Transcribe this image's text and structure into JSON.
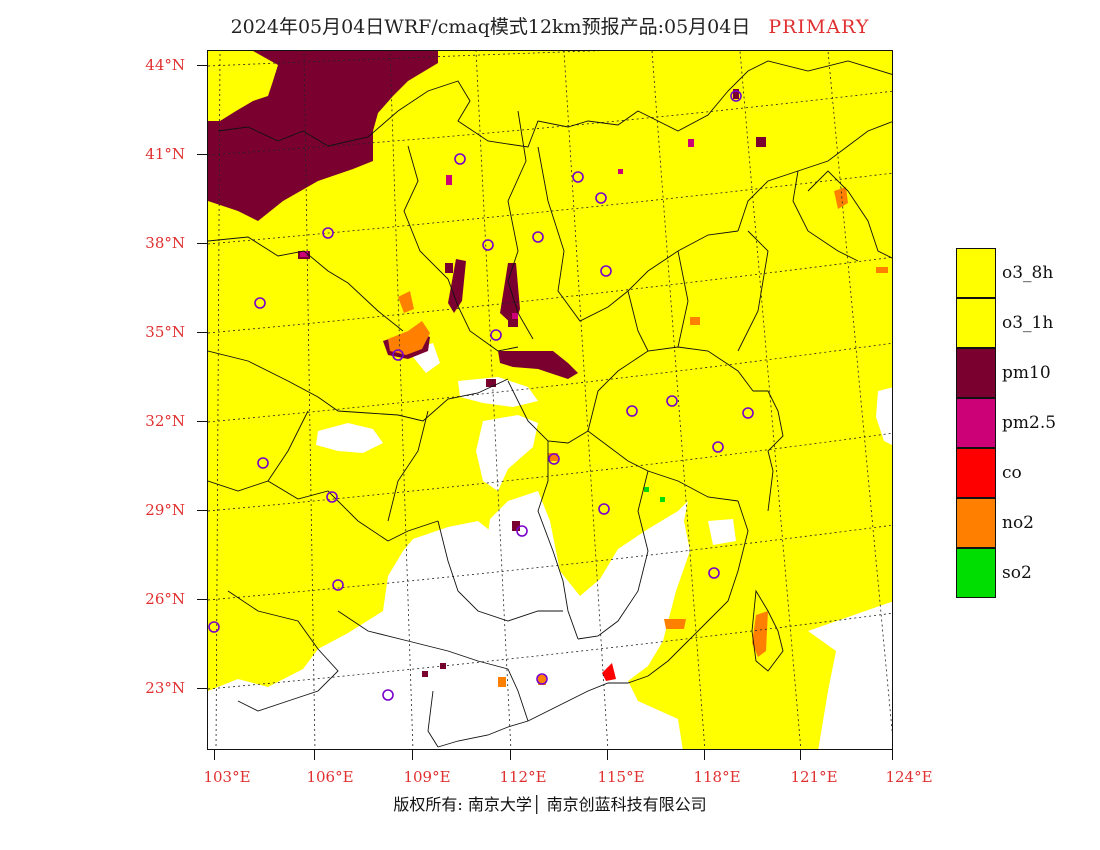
{
  "title": {
    "main": "2024年05月04日WRF/cmaq模式12km预报产品:05月04日",
    "tag": "PRIMARY"
  },
  "lat_labels": [
    "44°N",
    "41°N",
    "38°N",
    "35°N",
    "32°N",
    "29°N",
    "26°N",
    "23°N"
  ],
  "lon_labels": [
    "103°E",
    "106°E",
    "109°E",
    "112°E",
    "115°E",
    "118°E",
    "121°E",
    "124°E"
  ],
  "legend": [
    {
      "label": "o3_8h",
      "color": "#ffff00"
    },
    {
      "label": "o3_1h",
      "color": "#ffff00"
    },
    {
      "label": "pm10",
      "color": "#7a0030"
    },
    {
      "label": "pm2.5",
      "color": "#cc0077"
    },
    {
      "label": "co",
      "color": "#ff0000"
    },
    {
      "label": "no2",
      "color": "#ff8000"
    },
    {
      "label": "so2",
      "color": "#00dd00"
    }
  ],
  "footer": "版权所有: 南京大学│ 南京创蓝科技有限公司"
}
